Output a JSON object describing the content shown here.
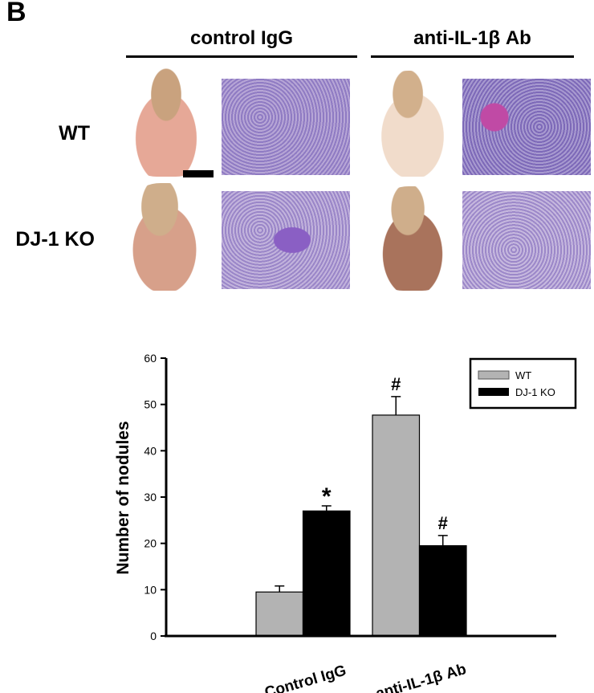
{
  "figure": {
    "panel_letter": "B",
    "column_headers": [
      "control IgG",
      "anti-IL-1β Ab"
    ],
    "row_labels": [
      "WT",
      "DJ-1 KO"
    ]
  },
  "chart_data": {
    "type": "bar",
    "categories": [
      "Control IgG",
      "anti-IL-1β Ab"
    ],
    "series": [
      {
        "name": "WT",
        "values": [
          9.5,
          47.7
        ],
        "errors": [
          1.3,
          4.0
        ],
        "color": "#b3b3b3",
        "markers": [
          "",
          "#"
        ]
      },
      {
        "name": "DJ-1 KO",
        "values": [
          27.0,
          19.5
        ],
        "errors": [
          1.1,
          2.2
        ],
        "color": "#000000",
        "markers": [
          "*",
          "#"
        ]
      }
    ],
    "xlabel": "",
    "ylabel": "Number of nodules",
    "ylim": [
      0,
      60
    ],
    "yticks": [
      "0",
      "10",
      "20",
      "30",
      "40",
      "50",
      "60"
    ],
    "grid": false,
    "legend": "top-right"
  }
}
